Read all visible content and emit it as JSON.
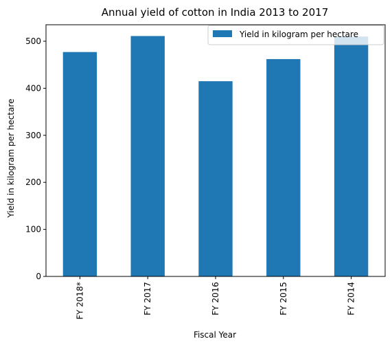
{
  "chart_data": {
    "type": "bar",
    "title": "Annual yield of cotton in India 2013 to 2017",
    "xlabel": "Fiscal Year",
    "ylabel": "Yield in kilogram per hectare",
    "categories": [
      "FY 2018*",
      "FY 2017",
      "FY 2016",
      "FY 2015",
      "FY 2014"
    ],
    "series": [
      {
        "name": "Yield in kilogram per hectare",
        "values": [
          477,
          511,
          415,
          462,
          510
        ]
      }
    ],
    "ylim": [
      0,
      535
    ],
    "yticks": [
      0,
      100,
      200,
      300,
      400,
      500
    ],
    "grid": false,
    "legend_position": "top-right",
    "colors": {
      "bar": "#1f77b4",
      "axis": "#000000"
    }
  }
}
